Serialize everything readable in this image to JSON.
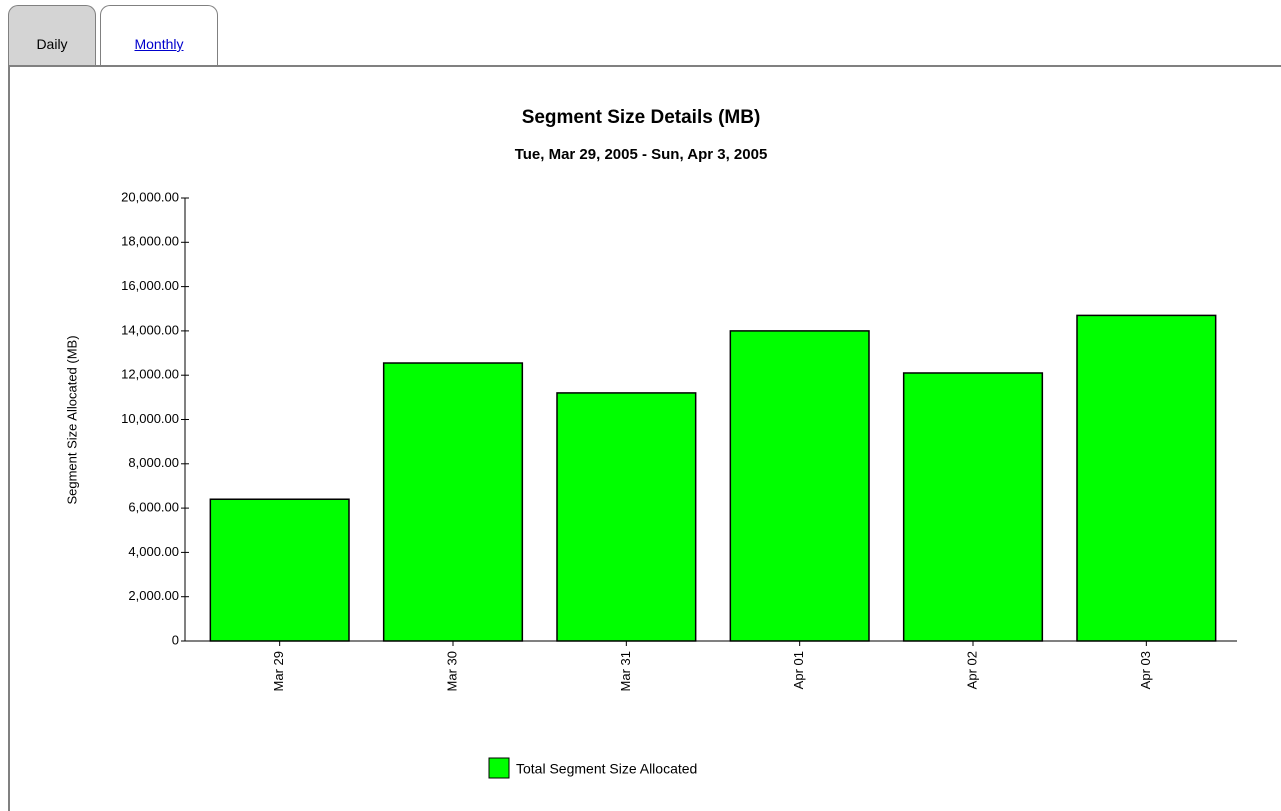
{
  "tabs": [
    "Daily",
    "Monthly"
  ],
  "chart_data": {
    "type": "bar",
    "title": "Segment Size Details (MB)",
    "subtitle": "Tue, Mar 29, 2005 - Sun, Apr 3, 2005",
    "y_label": "Segment Size Allocated (MB)",
    "categories": [
      "Mar 29",
      "Mar 30",
      "Mar 31",
      "Apr 01",
      "Apr 02",
      "Apr 03"
    ],
    "series": [
      {
        "name": "Total Segment Size Allocated",
        "color": "#00ff00",
        "values": [
          6400,
          12550,
          11200,
          14000,
          12100,
          14700
        ]
      }
    ],
    "ylim": [
      0,
      20000
    ],
    "yticks": [
      0,
      {
        "value": 2000,
        "label": "2,000.00"
      },
      {
        "value": 4000,
        "label": "4,000.00"
      },
      {
        "value": 6000,
        "label": "6,000.00"
      },
      {
        "value": 8000,
        "label": "8,000.00"
      },
      {
        "value": 10000,
        "label": "10,000.00"
      },
      {
        "value": 12000,
        "label": "12,000.00"
      },
      {
        "value": 14000,
        "label": "14,000.00"
      },
      {
        "value": 16000,
        "label": "16,000.00"
      },
      {
        "value": 18000,
        "label": "18,000.00"
      },
      {
        "value": 20000,
        "label": "20,000.00"
      }
    ],
    "grid": false
  }
}
